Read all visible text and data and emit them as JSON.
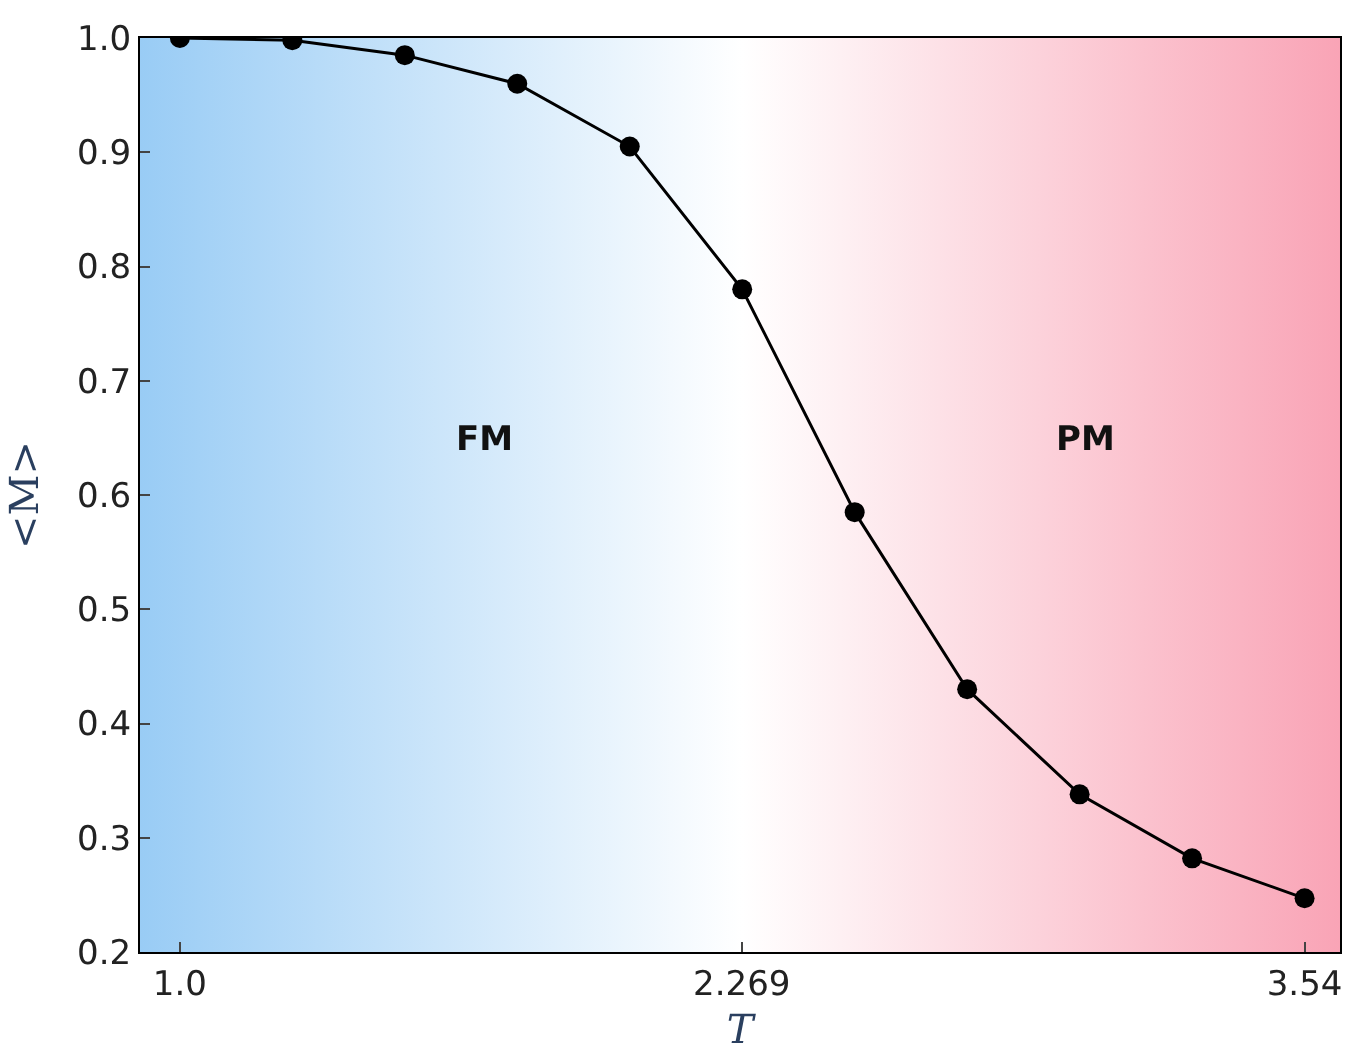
{
  "chart_data": {
    "type": "line",
    "xlabel": "T",
    "ylabel": "<M>",
    "x": [
      1.0,
      1.254,
      1.508,
      1.762,
      2.016,
      2.27,
      2.524,
      2.778,
      3.032,
      3.286,
      3.54
    ],
    "series": [
      {
        "color": "#000000",
        "values": [
          1.0,
          0.998,
          0.985,
          0.96,
          0.905,
          0.78,
          0.585,
          0.43,
          0.338,
          0.282,
          0.247
        ]
      }
    ],
    "xlim": [
      0.91,
      3.62
    ],
    "ylim": [
      0.2,
      1.0
    ],
    "xticks": [
      {
        "value": 1.0,
        "label": "1.0"
      },
      2.269,
      3.54
    ],
    "yticks": [
      0.2,
      0.3,
      0.4,
      0.5,
      0.6,
      0.7,
      0.8,
      0.9,
      {
        "value": 1.0,
        "label": "1.0"
      }
    ],
    "bands": [
      {
        "axis": "x",
        "from": 0.91,
        "to": 2.269,
        "label": "FM",
        "color": "#99ccf5"
      },
      {
        "axis": "x",
        "from": 2.269,
        "to": 3.62,
        "label": "PM",
        "color": "#f9a4b6"
      }
    ],
    "marker": "circle",
    "line_style": "solid"
  }
}
